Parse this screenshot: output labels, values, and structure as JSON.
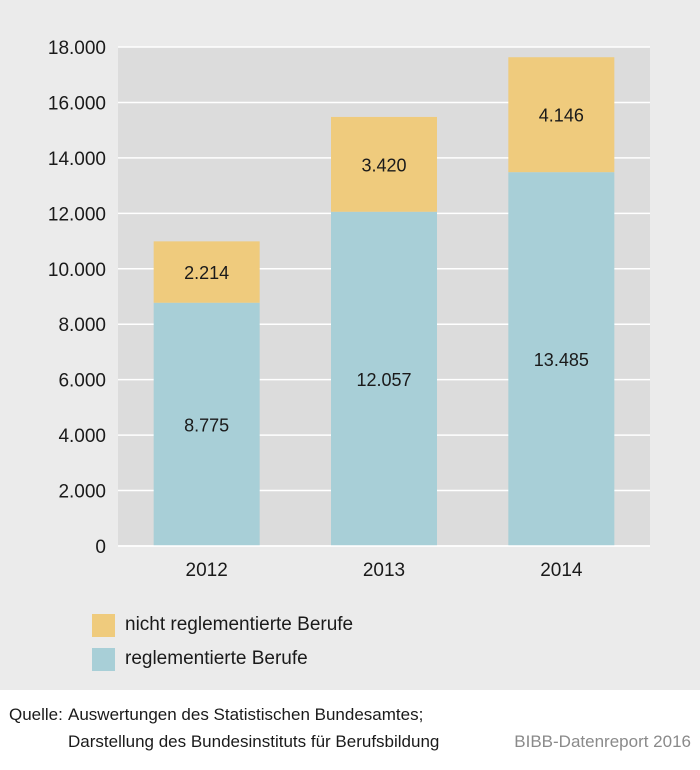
{
  "chart_data": {
    "type": "bar",
    "stacked": true,
    "categories": [
      "2012",
      "2013",
      "2014"
    ],
    "series": [
      {
        "name": "reglementierte Berufe",
        "values": [
          8775,
          12057,
          13485
        ],
        "color": "#a8cfd7"
      },
      {
        "name": "nicht reglementierte Berufe",
        "values": [
          2214,
          3420,
          4146
        ],
        "color": "#efcb7d"
      }
    ],
    "data_labels": [
      [
        "8.775",
        "12.057",
        "13.485"
      ],
      [
        "2.214",
        "3.420",
        "4.146"
      ]
    ],
    "y_ticks": [
      0,
      2000,
      4000,
      6000,
      8000,
      10000,
      12000,
      14000,
      16000,
      18000
    ],
    "y_tick_labels": [
      "0",
      "2.000",
      "4.000",
      "6.000",
      "8.000",
      "10.000",
      "12.000",
      "14.000",
      "16.000",
      "18.000"
    ],
    "ylim": [
      0,
      18000
    ],
    "grid": true,
    "legend_position": "bottom-left"
  },
  "legend": {
    "items": [
      {
        "label": "nicht reglementierte Berufe",
        "color": "#efcb7d"
      },
      {
        "label": "reglementierte Berufe",
        "color": "#a8cfd7"
      }
    ]
  },
  "footer": {
    "source_label": "Quelle:",
    "source_line1": "Auswertungen des Statistischen Bundesamtes;",
    "source_line2": "Darstellung des Bundesinstituts für Berufsbildung",
    "credit": "BIBB-Datenreport 2016"
  }
}
